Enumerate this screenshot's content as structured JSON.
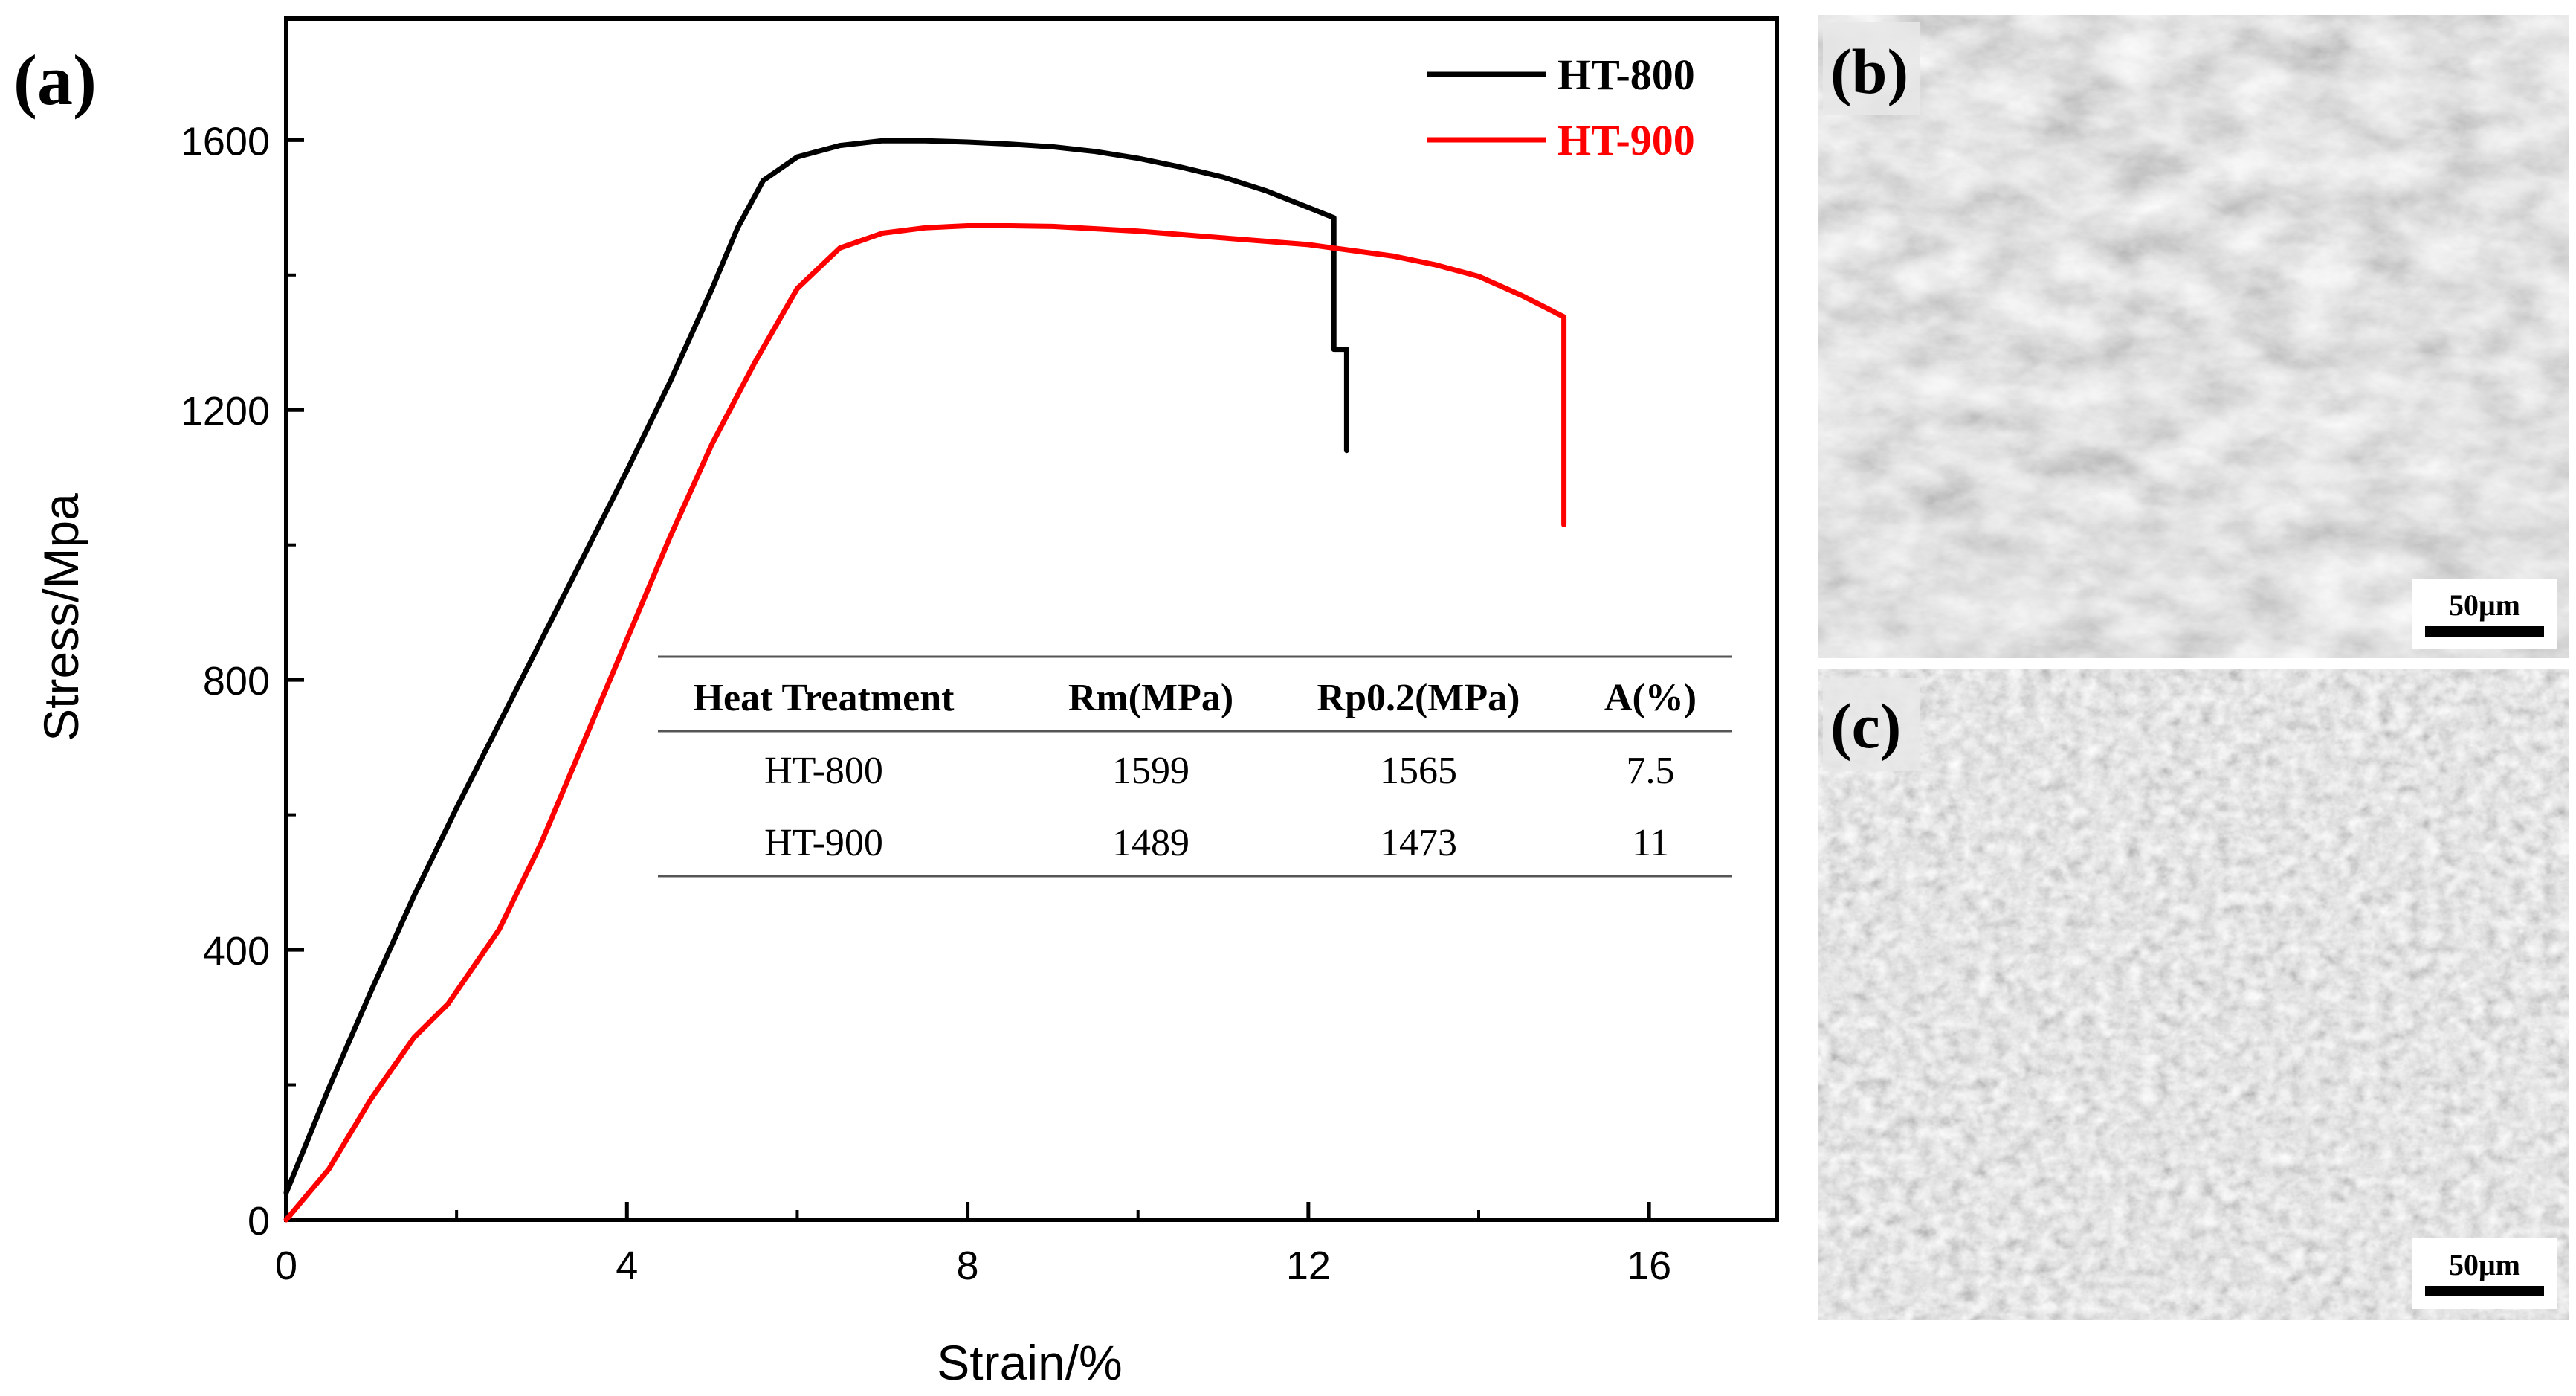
{
  "panel_labels": {
    "a": "(a)",
    "b": "(b)",
    "c": "(c)"
  },
  "sem": {
    "scale_bar_label": "50μm"
  },
  "colors": {
    "HT-800": "#000000",
    "HT-900": "#ff0000",
    "sem_base": "#9a9a9a"
  },
  "chart_data": {
    "type": "line",
    "title": "",
    "xlabel": "Strain/%",
    "ylabel": "Stress/Mpa",
    "xlim": [
      0,
      17.5
    ],
    "ylim": [
      0,
      1780
    ],
    "xticks": [
      0,
      4,
      8,
      12,
      16
    ],
    "yticks": [
      0,
      400,
      800,
      1200,
      1600
    ],
    "grid": false,
    "legend_position": "top-right",
    "series": [
      {
        "name": "HT-800",
        "color": "#000000",
        "points": [
          [
            0,
            40
          ],
          [
            0.5,
            195
          ],
          [
            1,
            340
          ],
          [
            1.5,
            480
          ],
          [
            2,
            610
          ],
          [
            2.5,
            735
          ],
          [
            3,
            860
          ],
          [
            3.5,
            985
          ],
          [
            4,
            1110
          ],
          [
            4.5,
            1240
          ],
          [
            5,
            1380
          ],
          [
            5.3,
            1470
          ],
          [
            5.6,
            1540
          ],
          [
            6,
            1575
          ],
          [
            6.5,
            1592
          ],
          [
            7,
            1599
          ],
          [
            7.5,
            1599
          ],
          [
            8,
            1597
          ],
          [
            8.5,
            1594
          ],
          [
            9,
            1590
          ],
          [
            9.5,
            1583
          ],
          [
            10,
            1573
          ],
          [
            10.5,
            1560
          ],
          [
            11,
            1545
          ],
          [
            11.5,
            1525
          ],
          [
            12,
            1500
          ],
          [
            12.3,
            1485
          ],
          [
            12.3,
            1290
          ],
          [
            12.45,
            1290
          ],
          [
            12.45,
            1140
          ]
        ]
      },
      {
        "name": "HT-900",
        "color": "#ff0000",
        "points": [
          [
            0,
            0
          ],
          [
            0.5,
            75
          ],
          [
            1,
            180
          ],
          [
            1.5,
            270
          ],
          [
            1.9,
            320
          ],
          [
            2.5,
            430
          ],
          [
            3,
            560
          ],
          [
            3.5,
            710
          ],
          [
            4,
            860
          ],
          [
            4.5,
            1010
          ],
          [
            5,
            1150
          ],
          [
            5.5,
            1270
          ],
          [
            6,
            1380
          ],
          [
            6.5,
            1440
          ],
          [
            7,
            1462
          ],
          [
            7.5,
            1470
          ],
          [
            8,
            1473
          ],
          [
            8.5,
            1473
          ],
          [
            9,
            1472
          ],
          [
            10,
            1465
          ],
          [
            11,
            1455
          ],
          [
            12,
            1445
          ],
          [
            13,
            1428
          ],
          [
            13.5,
            1415
          ],
          [
            14,
            1398
          ],
          [
            14.5,
            1370
          ],
          [
            15,
            1338
          ],
          [
            15,
            1030
          ]
        ]
      }
    ],
    "table": {
      "headers": [
        "Heat Treatment",
        "Rm(MPa)",
        "Rp0.2(MPa)",
        "A(%)"
      ],
      "rows": [
        [
          "HT-800",
          "1599",
          "1565",
          "7.5"
        ],
        [
          "HT-900",
          "1489",
          "1473",
          "11"
        ]
      ]
    }
  }
}
